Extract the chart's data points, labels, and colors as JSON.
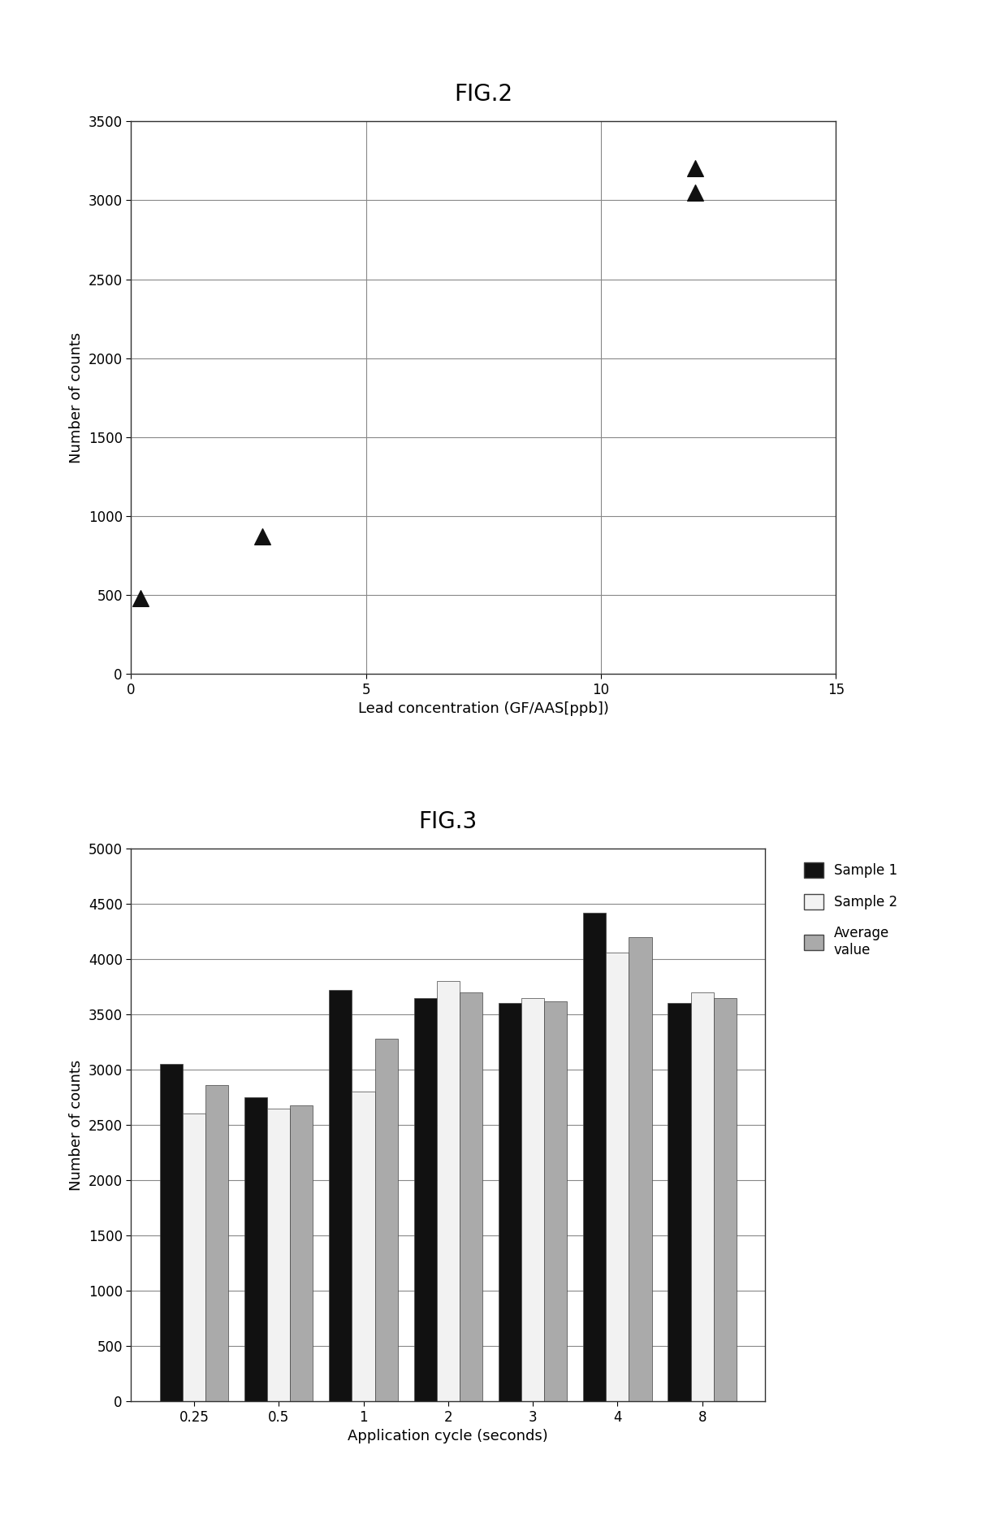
{
  "fig2": {
    "title": "FIG.2",
    "xlabel": "Lead concentration (GF/AAS[ppb])",
    "ylabel": "Number of counts",
    "xlim": [
      0,
      15
    ],
    "ylim": [
      0,
      3500
    ],
    "xticks": [
      0,
      5,
      10,
      15
    ],
    "yticks": [
      0,
      500,
      1000,
      1500,
      2000,
      2500,
      3000,
      3500
    ],
    "scatter_x": [
      0.2,
      2.8,
      12.0,
      12.0
    ],
    "scatter_y": [
      480,
      870,
      3050,
      3200
    ],
    "marker_color": "#111111",
    "marker_size": 200,
    "title_fontsize": 20,
    "label_fontsize": 13
  },
  "fig3": {
    "title": "FIG.3",
    "xlabel": "Application cycle (seconds)",
    "ylabel": "Number of counts",
    "ylim": [
      0,
      5000
    ],
    "yticks": [
      0,
      500,
      1000,
      1500,
      2000,
      2500,
      3000,
      3500,
      4000,
      4500,
      5000
    ],
    "categories": [
      "0.25",
      "0.5",
      "1",
      "2",
      "3",
      "4",
      "8"
    ],
    "sample1": [
      3050,
      2750,
      3720,
      3650,
      3600,
      4420,
      3600
    ],
    "sample2": [
      2600,
      2650,
      2800,
      3800,
      3650,
      4060,
      3700
    ],
    "average": [
      2860,
      2680,
      3280,
      3700,
      3620,
      4200,
      3650
    ],
    "color_sample1": "#111111",
    "color_sample2": "#f2f2f2",
    "color_average": "#aaaaaa",
    "bar_width": 0.27,
    "title_fontsize": 20,
    "label_fontsize": 13,
    "legend_fontsize": 12
  },
  "background_color": "#ffffff"
}
